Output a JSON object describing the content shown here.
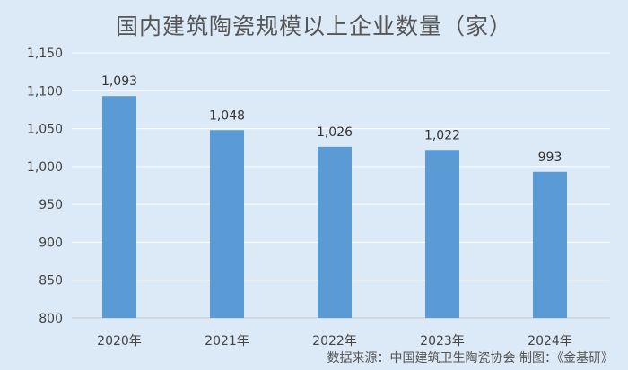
{
  "chart_data": {
    "type": "bar",
    "title": "国内建筑陶瓷规模以上企业数量（家）",
    "categories": [
      "2020年",
      "2021年",
      "2022年",
      "2023年",
      "2024年"
    ],
    "values": [
      1093,
      1048,
      1026,
      1022,
      993
    ],
    "data_labels": [
      "1,093",
      "1,048",
      "1,026",
      "1,022",
      "993"
    ],
    "ylim": [
      800,
      1150
    ],
    "yticks": [
      800,
      850,
      900,
      950,
      1000,
      1050,
      1100,
      1150
    ],
    "ytick_labels": [
      "800",
      "850",
      "900",
      "950",
      "1,000",
      "1,050",
      "1,100",
      "1,150"
    ],
    "grid": true,
    "legend": "none",
    "bar_color": "#5b9bd5",
    "source": "数据来源：中国建筑卫生陶瓷协会  制图：《金基研》"
  }
}
